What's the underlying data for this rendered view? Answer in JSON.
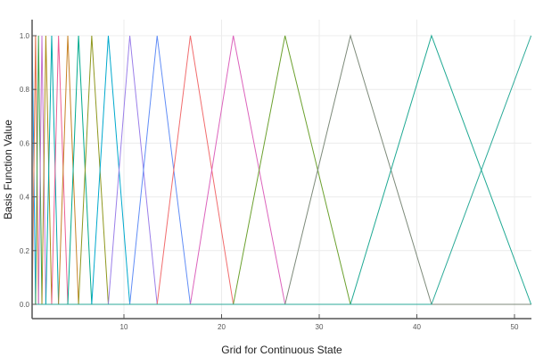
{
  "chart_data": {
    "type": "line",
    "title": "",
    "xlabel": "Grid for Continuous State",
    "ylabel": "Basis Function Value",
    "xlim": [
      0.6,
      51.7
    ],
    "ylim": [
      -0.06,
      1.06
    ],
    "grid": true,
    "legend": "none",
    "xticks": [
      10,
      20,
      30,
      40,
      50
    ],
    "xtick_labels": [
      "10",
      "20",
      "30",
      "40",
      "50"
    ],
    "yticks": [
      0.0,
      0.2,
      0.4,
      0.6,
      0.8,
      1.0
    ],
    "ytick_labels": [
      "0.0",
      "0.2",
      "0.4",
      "0.6",
      "0.8",
      "1.0"
    ],
    "nodes": [
      0.6,
      0.95,
      1.25,
      1.6,
      2.0,
      2.6,
      3.3,
      4.25,
      5.35,
      6.7,
      8.4,
      10.6,
      13.4,
      16.8,
      21.2,
      26.5,
      33.2,
      41.5,
      51.7
    ],
    "series_description": "Piecewise-linear hat (tent) basis functions, one per grid node; each equals 1 at its node and falls linearly to 0 at adjacent nodes.",
    "series_colors": [
      "#009AFA",
      "#E36F47",
      "#3EA44E",
      "#C371D2",
      "#AC8D18",
      "#00A9AD",
      "#ED5E93",
      "#C68225",
      "#00A98D",
      "#8E971D",
      "#00A9CD",
      "#9B7FE9",
      "#618DF6",
      "#F16C6D",
      "#DC63BC",
      "#6CA12F",
      "#7D8A7A",
      "#1FA993",
      "#2BAA98",
      "#A274D8"
    ]
  }
}
